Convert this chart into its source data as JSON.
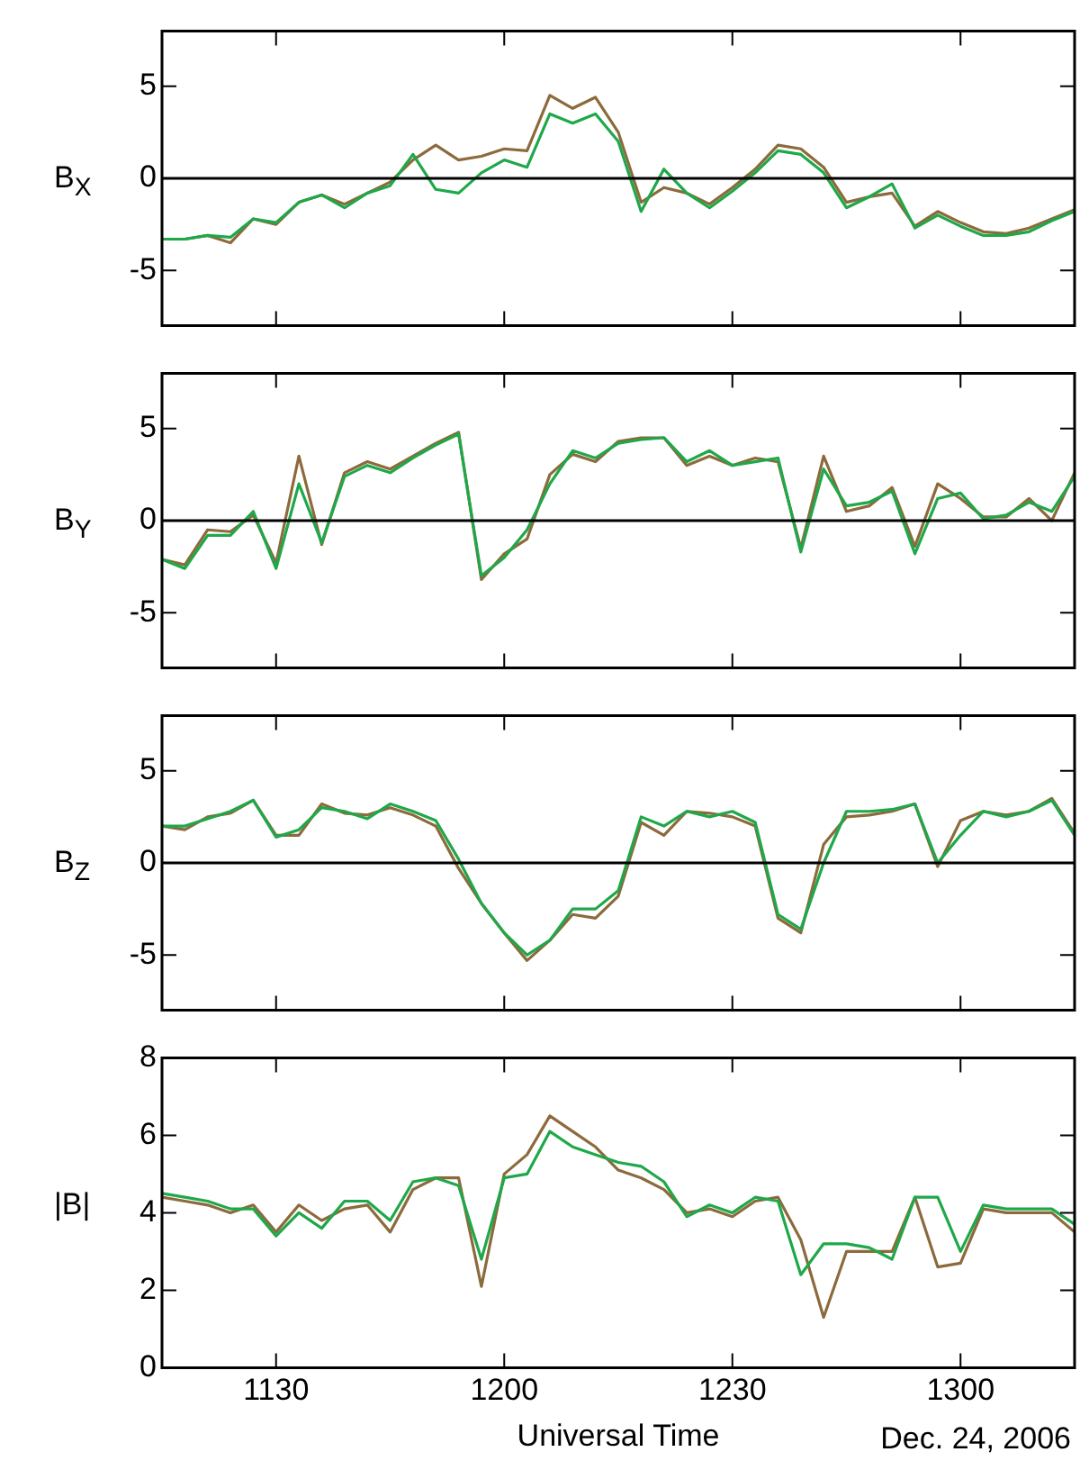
{
  "chart_data": [
    {
      "type": "line",
      "ylabel": "B$_{X}$",
      "tick_labels": "y",
      "marker": "none",
      "line_style": "solid",
      "x": [
        "2006-12-24T11:15",
        "2006-12-24T11:18",
        "2006-12-24T11:21",
        "2006-12-24T11:24",
        "2006-12-24T11:27",
        "2006-12-24T11:30",
        "2006-12-24T11:33",
        "2006-12-24T11:36",
        "2006-12-24T11:39",
        "2006-12-24T11:42",
        "2006-12-24T11:45",
        "2006-12-24T11:48",
        "2006-12-24T11:51",
        "2006-12-24T11:54",
        "2006-12-24T11:57",
        "2006-12-24T12:00",
        "2006-12-24T12:03",
        "2006-12-24T12:06",
        "2006-12-24T12:09",
        "2006-12-24T12:12",
        "2006-12-24T12:15",
        "2006-12-24T12:18",
        "2006-12-24T12:21",
        "2006-12-24T12:24",
        "2006-12-24T12:27",
        "2006-12-24T12:30",
        "2006-12-24T12:33",
        "2006-12-24T12:36",
        "2006-12-24T12:39",
        "2006-12-24T12:42",
        "2006-12-24T12:45",
        "2006-12-24T12:48",
        "2006-12-24T12:51",
        "2006-12-24T12:54",
        "2006-12-24T12:57",
        "2006-12-24T13:00",
        "2006-12-24T13:03",
        "2006-12-24T13:06",
        "2006-12-24T13:09",
        "2006-12-24T13:12",
        "2006-12-24T13:15"
      ],
      "xlim": [
        "2006-12-24T11:15",
        "2006-12-24T13:15"
      ],
      "xticks": [
        {
          "value": "2006-12-24T11:30",
          "label": null
        },
        {
          "value": "2006-12-24T12:00",
          "label": null
        },
        {
          "value": "2006-12-24T12:30",
          "label": null
        },
        {
          "value": "2006-12-24T13:00",
          "label": null
        }
      ],
      "ylim": [
        -8,
        8
      ],
      "yticks": [
        -5,
        0,
        5
      ],
      "ref_lines": [
        {
          "axis": "y",
          "value": 0,
          "color": "#000000"
        }
      ],
      "series": [
        {
          "color": "#1fa84a",
          "values": [
            -3.3,
            -3.3,
            -3.1,
            -3.2,
            -2.2,
            -2.4,
            -1.3,
            -0.9,
            -1.6,
            -0.8,
            -0.4,
            1.3,
            -0.6,
            -0.8,
            0.3,
            1.0,
            0.6,
            3.5,
            3.0,
            3.5,
            2.0,
            -1.8,
            0.5,
            -0.8,
            -1.6,
            -0.7,
            0.3,
            1.5,
            1.3,
            0.3,
            -1.6,
            -1.0,
            -0.3,
            -2.7,
            -2.0,
            -2.6,
            -3.1,
            -3.1,
            -2.9,
            -2.3,
            -1.8
          ]
        },
        {
          "color": "#8c6a3c",
          "values": [
            -3.3,
            -3.3,
            -3.1,
            -3.5,
            -2.2,
            -2.5,
            -1.3,
            -0.9,
            -1.4,
            -0.8,
            -0.2,
            1.0,
            1.8,
            1.0,
            1.2,
            1.6,
            1.5,
            4.5,
            3.8,
            4.4,
            2.5,
            -1.3,
            -0.5,
            -0.8,
            -1.4,
            -0.5,
            0.5,
            1.8,
            1.6,
            0.6,
            -1.3,
            -1.0,
            -0.8,
            -2.6,
            -1.8,
            -2.4,
            -2.9,
            -3.0,
            -2.7,
            -2.2,
            -1.7
          ]
        }
      ]
    },
    {
      "type": "line",
      "ylabel": "B$_{Y}$",
      "tick_labels": "y",
      "marker": "none",
      "line_style": "solid",
      "x": [
        "2006-12-24T11:15",
        "2006-12-24T11:18",
        "2006-12-24T11:21",
        "2006-12-24T11:24",
        "2006-12-24T11:27",
        "2006-12-24T11:30",
        "2006-12-24T11:33",
        "2006-12-24T11:36",
        "2006-12-24T11:39",
        "2006-12-24T11:42",
        "2006-12-24T11:45",
        "2006-12-24T11:48",
        "2006-12-24T11:51",
        "2006-12-24T11:54",
        "2006-12-24T11:57",
        "2006-12-24T12:00",
        "2006-12-24T12:03",
        "2006-12-24T12:06",
        "2006-12-24T12:09",
        "2006-12-24T12:12",
        "2006-12-24T12:15",
        "2006-12-24T12:18",
        "2006-12-24T12:21",
        "2006-12-24T12:24",
        "2006-12-24T12:27",
        "2006-12-24T12:30",
        "2006-12-24T12:33",
        "2006-12-24T12:36",
        "2006-12-24T12:39",
        "2006-12-24T12:42",
        "2006-12-24T12:45",
        "2006-12-24T12:48",
        "2006-12-24T12:51",
        "2006-12-24T12:54",
        "2006-12-24T12:57",
        "2006-12-24T13:00",
        "2006-12-24T13:03",
        "2006-12-24T13:06",
        "2006-12-24T13:09",
        "2006-12-24T13:12",
        "2006-12-24T13:15"
      ],
      "xlim": [
        "2006-12-24T11:15",
        "2006-12-24T13:15"
      ],
      "xticks": [
        {
          "value": "2006-12-24T11:30",
          "label": null
        },
        {
          "value": "2006-12-24T12:00",
          "label": null
        },
        {
          "value": "2006-12-24T12:30",
          "label": null
        },
        {
          "value": "2006-12-24T13:00",
          "label": null
        }
      ],
      "ylim": [
        -8,
        8
      ],
      "yticks": [
        -5,
        0,
        5
      ],
      "ref_lines": [
        {
          "axis": "y",
          "value": 0,
          "color": "#000000"
        }
      ],
      "series": [
        {
          "color": "#1fa84a",
          "values": [
            -2.1,
            -2.6,
            -0.8,
            -0.8,
            0.5,
            -2.6,
            2.0,
            -1.2,
            2.4,
            3.0,
            2.6,
            3.4,
            4.1,
            4.7,
            -3.0,
            -2.0,
            -0.5,
            2.0,
            3.8,
            3.4,
            4.2,
            4.4,
            4.5,
            3.2,
            3.8,
            3.0,
            3.2,
            3.4,
            -1.7,
            2.8,
            0.8,
            1.0,
            1.6,
            -1.8,
            1.2,
            1.5,
            0.1,
            0.3,
            1.0,
            0.5,
            2.4
          ]
        },
        {
          "color": "#8c6a3c",
          "values": [
            -2.1,
            -2.4,
            -0.5,
            -0.6,
            0.3,
            -2.3,
            3.5,
            -1.3,
            2.6,
            3.2,
            2.8,
            3.5,
            4.2,
            4.8,
            -3.2,
            -1.8,
            -1.0,
            2.5,
            3.6,
            3.2,
            4.3,
            4.5,
            4.5,
            3.0,
            3.5,
            3.0,
            3.4,
            3.2,
            -1.5,
            3.5,
            0.5,
            0.8,
            1.8,
            -1.4,
            2.0,
            1.2,
            0.2,
            0.2,
            1.2,
            0.0,
            2.6
          ]
        }
      ]
    },
    {
      "type": "line",
      "ylabel": "B$_{Z}$",
      "tick_labels": "y",
      "marker": "none",
      "line_style": "solid",
      "x": [
        "2006-12-24T11:15",
        "2006-12-24T11:18",
        "2006-12-24T11:21",
        "2006-12-24T11:24",
        "2006-12-24T11:27",
        "2006-12-24T11:30",
        "2006-12-24T11:33",
        "2006-12-24T11:36",
        "2006-12-24T11:39",
        "2006-12-24T11:42",
        "2006-12-24T11:45",
        "2006-12-24T11:48",
        "2006-12-24T11:51",
        "2006-12-24T11:54",
        "2006-12-24T11:57",
        "2006-12-24T12:00",
        "2006-12-24T12:03",
        "2006-12-24T12:06",
        "2006-12-24T12:09",
        "2006-12-24T12:12",
        "2006-12-24T12:15",
        "2006-12-24T12:18",
        "2006-12-24T12:21",
        "2006-12-24T12:24",
        "2006-12-24T12:27",
        "2006-12-24T12:30",
        "2006-12-24T12:33",
        "2006-12-24T12:36",
        "2006-12-24T12:39",
        "2006-12-24T12:42",
        "2006-12-24T12:45",
        "2006-12-24T12:48",
        "2006-12-24T12:51",
        "2006-12-24T12:54",
        "2006-12-24T12:57",
        "2006-12-24T13:00",
        "2006-12-24T13:03",
        "2006-12-24T13:06",
        "2006-12-24T13:09",
        "2006-12-24T13:12",
        "2006-12-24T13:15"
      ],
      "xlim": [
        "2006-12-24T11:15",
        "2006-12-24T13:15"
      ],
      "xticks": [
        {
          "value": "2006-12-24T11:30",
          "label": null
        },
        {
          "value": "2006-12-24T12:00",
          "label": null
        },
        {
          "value": "2006-12-24T12:30",
          "label": null
        },
        {
          "value": "2006-12-24T13:00",
          "label": null
        }
      ],
      "ylim": [
        -8,
        8
      ],
      "yticks": [
        -5,
        0,
        5
      ],
      "ref_lines": [
        {
          "axis": "y",
          "value": 0,
          "color": "#000000"
        }
      ],
      "series": [
        {
          "color": "#1fa84a",
          "values": [
            2.0,
            2.0,
            2.4,
            2.8,
            3.4,
            1.4,
            1.8,
            3.0,
            2.8,
            2.4,
            3.2,
            2.8,
            2.3,
            0.2,
            -2.2,
            -3.8,
            -5.0,
            -4.2,
            -2.5,
            -2.5,
            -1.5,
            2.5,
            2.0,
            2.8,
            2.5,
            2.8,
            2.2,
            -2.8,
            -3.6,
            0.0,
            2.8,
            2.8,
            2.9,
            3.2,
            0.0,
            1.5,
            2.8,
            2.5,
            2.8,
            3.4,
            1.5
          ]
        },
        {
          "color": "#8c6a3c",
          "values": [
            2.0,
            1.8,
            2.5,
            2.7,
            3.4,
            1.5,
            1.5,
            3.2,
            2.7,
            2.6,
            3.0,
            2.6,
            2.0,
            -0.3,
            -2.2,
            -3.8,
            -5.3,
            -4.2,
            -2.8,
            -3.0,
            -1.8,
            2.2,
            1.5,
            2.8,
            2.7,
            2.5,
            2.0,
            -3.0,
            -3.8,
            1.0,
            2.5,
            2.6,
            2.8,
            3.2,
            -0.2,
            2.3,
            2.8,
            2.6,
            2.8,
            3.5,
            1.6
          ]
        }
      ]
    },
    {
      "type": "line",
      "ylabel": "|B|",
      "xlabel": "Universal Time",
      "annotations": [
        "Dec. 24, 2006"
      ],
      "marker": "none",
      "line_style": "solid",
      "x": [
        "2006-12-24T11:15",
        "2006-12-24T11:18",
        "2006-12-24T11:21",
        "2006-12-24T11:24",
        "2006-12-24T11:27",
        "2006-12-24T11:30",
        "2006-12-24T11:33",
        "2006-12-24T11:36",
        "2006-12-24T11:39",
        "2006-12-24T11:42",
        "2006-12-24T11:45",
        "2006-12-24T11:48",
        "2006-12-24T11:51",
        "2006-12-24T11:54",
        "2006-12-24T11:57",
        "2006-12-24T12:00",
        "2006-12-24T12:03",
        "2006-12-24T12:06",
        "2006-12-24T12:09",
        "2006-12-24T12:12",
        "2006-12-24T12:15",
        "2006-12-24T12:18",
        "2006-12-24T12:21",
        "2006-12-24T12:24",
        "2006-12-24T12:27",
        "2006-12-24T12:30",
        "2006-12-24T12:33",
        "2006-12-24T12:36",
        "2006-12-24T12:39",
        "2006-12-24T12:42",
        "2006-12-24T12:45",
        "2006-12-24T12:48",
        "2006-12-24T12:51",
        "2006-12-24T12:54",
        "2006-12-24T12:57",
        "2006-12-24T13:00",
        "2006-12-24T13:03",
        "2006-12-24T13:06",
        "2006-12-24T13:09",
        "2006-12-24T13:12",
        "2006-12-24T13:15"
      ],
      "xlim": [
        "2006-12-24T11:15",
        "2006-12-24T13:15"
      ],
      "xticks": [
        {
          "value": "2006-12-24T11:30",
          "label": "1130"
        },
        {
          "value": "2006-12-24T12:00",
          "label": "1200"
        },
        {
          "value": "2006-12-24T12:30",
          "label": "1230"
        },
        {
          "value": "2006-12-24T13:00",
          "label": "1300"
        }
      ],
      "ylim": [
        0,
        8
      ],
      "yticks": [
        0,
        2,
        4,
        6,
        8
      ],
      "series": [
        {
          "color": "#1fa84a",
          "values": [
            4.5,
            4.4,
            4.3,
            4.1,
            4.1,
            3.4,
            4.0,
            3.6,
            4.3,
            4.3,
            3.8,
            4.8,
            4.9,
            4.7,
            2.8,
            4.9,
            5.0,
            6.1,
            5.7,
            5.5,
            5.3,
            5.2,
            4.8,
            3.9,
            4.2,
            4.0,
            4.4,
            4.3,
            2.4,
            3.2,
            3.2,
            3.1,
            2.8,
            4.4,
            4.4,
            3.0,
            4.2,
            4.1,
            4.1,
            4.1,
            3.7
          ]
        },
        {
          "color": "#8c6a3c",
          "values": [
            4.4,
            4.3,
            4.2,
            4.0,
            4.2,
            3.5,
            4.2,
            3.8,
            4.1,
            4.2,
            3.5,
            4.6,
            4.9,
            4.9,
            2.1,
            5.0,
            5.5,
            6.5,
            6.1,
            5.7,
            5.1,
            4.9,
            4.6,
            4.0,
            4.1,
            3.9,
            4.3,
            4.4,
            3.3,
            1.3,
            3.0,
            3.0,
            3.0,
            4.4,
            2.6,
            2.7,
            4.1,
            4.0,
            4.0,
            4.0,
            3.5
          ]
        }
      ]
    }
  ]
}
